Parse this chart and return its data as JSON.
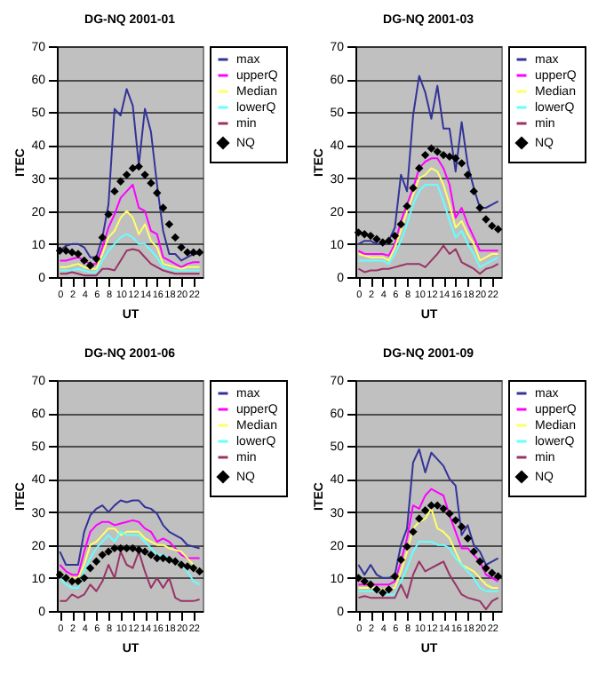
{
  "chart_data": [
    {
      "type": "line",
      "title": "DG-NQ 2001-01",
      "xlabel": "UT",
      "ylabel": "ITEC",
      "x": [
        0,
        1,
        2,
        3,
        4,
        5,
        6,
        7,
        8,
        9,
        10,
        11,
        12,
        13,
        14,
        15,
        16,
        17,
        18,
        19,
        20,
        21,
        22,
        23
      ],
      "xlim": [
        -0.5,
        23.5
      ],
      "xticks": [
        0,
        2,
        4,
        6,
        8,
        10,
        12,
        14,
        16,
        18,
        20,
        22
      ],
      "ylim": [
        0,
        70
      ],
      "yticks": [
        0,
        10,
        20,
        30,
        40,
        50,
        60,
        70
      ],
      "grid": "y",
      "legend": "right",
      "series": [
        {
          "name": "max",
          "color": "#333399",
          "values": [
            8,
            9.5,
            10,
            10,
            9,
            6,
            6,
            12,
            22,
            51,
            49,
            57,
            52,
            34,
            51,
            44,
            28,
            14,
            7,
            7,
            5,
            6,
            7,
            7
          ]
        },
        {
          "name": "upperQ",
          "color": "#ff00ff",
          "values": [
            5,
            5,
            5.5,
            6,
            5,
            4,
            4,
            9,
            15,
            19,
            24,
            26,
            28,
            21,
            20,
            14,
            13,
            6,
            5,
            4,
            3,
            4,
            4.5,
            4.5
          ]
        },
        {
          "name": "Median",
          "color": "#ffff66",
          "values": [
            3,
            3,
            3.5,
            4,
            3,
            2.5,
            2.5,
            7,
            12,
            14,
            18,
            20,
            18,
            13,
            16,
            11,
            9,
            4,
            3.5,
            3,
            2.5,
            3,
            3,
            3
          ]
        },
        {
          "name": "lowerQ",
          "color": "#66ffff",
          "values": [
            2,
            2,
            2,
            2.5,
            2,
            1.5,
            1.5,
            5,
            8,
            10,
            12,
            13,
            12,
            10,
            10,
            8,
            6,
            3,
            2.5,
            2,
            2,
            2,
            2,
            2
          ]
        },
        {
          "name": "min",
          "color": "#993366",
          "values": [
            1,
            1,
            1.5,
            1,
            0.5,
            0.5,
            0.5,
            2.5,
            2.5,
            2,
            5,
            8,
            8.5,
            8,
            6,
            4,
            3,
            2,
            1.5,
            1,
            1,
            1,
            1,
            1
          ]
        },
        {
          "name": "NQ",
          "type": "scatter",
          "marker": "diamond",
          "color": "#000000",
          "values": [
            8,
            8,
            7.5,
            7,
            5,
            3.5,
            5.5,
            12,
            19,
            26,
            29,
            31,
            33,
            33.5,
            31,
            28.5,
            25.5,
            21,
            16,
            12,
            9,
            7.5,
            7.5,
            7.5
          ]
        }
      ]
    },
    {
      "type": "line",
      "title": "DG-NQ 2001-03",
      "xlabel": "UT",
      "ylabel": "ITEC",
      "x": [
        0,
        1,
        2,
        3,
        4,
        5,
        6,
        7,
        8,
        9,
        10,
        11,
        12,
        13,
        14,
        15,
        16,
        17,
        18,
        19,
        20,
        21,
        22,
        23
      ],
      "xlim": [
        -0.5,
        23.5
      ],
      "xticks": [
        0,
        2,
        4,
        6,
        8,
        10,
        12,
        14,
        16,
        18,
        20,
        22
      ],
      "ylim": [
        0,
        70
      ],
      "yticks": [
        0,
        10,
        20,
        30,
        40,
        50,
        60,
        70
      ],
      "grid": "y",
      "legend": "right",
      "series": [
        {
          "name": "max",
          "color": "#333399",
          "values": [
            10,
            11,
            11,
            10,
            10,
            11,
            15,
            31,
            26,
            49,
            61,
            56,
            48,
            58,
            45,
            45,
            32,
            47,
            34,
            27,
            21,
            21,
            22,
            23
          ]
        },
        {
          "name": "upperQ",
          "color": "#ff00ff",
          "values": [
            8,
            7,
            7,
            7,
            7,
            6.5,
            10,
            17,
            22,
            27,
            33,
            35,
            36,
            36,
            33,
            28,
            18,
            21,
            16,
            12,
            8,
            8,
            8,
            8
          ]
        },
        {
          "name": "Median",
          "color": "#ffff66",
          "values": [
            7,
            6.5,
            6,
            6,
            6,
            5,
            9,
            14,
            20,
            25,
            30,
            31,
            33,
            32,
            28,
            22,
            15,
            17,
            13,
            10,
            5,
            6,
            7,
            7
          ]
        },
        {
          "name": "lowerQ",
          "color": "#66ffff",
          "values": [
            5,
            5,
            5,
            5,
            5,
            4,
            7,
            11,
            16,
            22,
            26,
            28,
            28,
            28,
            23,
            17,
            12,
            14,
            10,
            7,
            3,
            4,
            5,
            6
          ]
        },
        {
          "name": "min",
          "color": "#993366",
          "values": [
            2.5,
            1.5,
            2,
            2,
            2.5,
            2.5,
            3,
            3.5,
            4,
            4,
            4,
            3,
            5,
            7,
            9.5,
            7,
            8.5,
            4.5,
            3.5,
            2.5,
            1,
            2.5,
            3,
            4
          ]
        },
        {
          "name": "NQ",
          "type": "scatter",
          "marker": "diamond",
          "color": "#000000",
          "values": [
            13.5,
            13,
            12.5,
            11.5,
            10.5,
            11,
            12.5,
            16,
            21.5,
            27,
            33,
            37,
            39,
            38,
            37,
            36.5,
            36,
            34.5,
            31,
            26,
            21,
            17.5,
            15.5,
            14.5
          ]
        }
      ]
    },
    {
      "type": "line",
      "title": "DG-NQ 2001-06",
      "xlabel": "UT",
      "ylabel": "ITEC",
      "x": [
        0,
        1,
        2,
        3,
        4,
        5,
        6,
        7,
        8,
        9,
        10,
        11,
        12,
        13,
        14,
        15,
        16,
        17,
        18,
        19,
        20,
        21,
        22,
        23
      ],
      "xlim": [
        -0.5,
        23.5
      ],
      "xticks": [
        0,
        2,
        4,
        6,
        8,
        10,
        12,
        14,
        16,
        18,
        20,
        22
      ],
      "ylim": [
        0,
        70
      ],
      "yticks": [
        0,
        10,
        20,
        30,
        40,
        50,
        60,
        70
      ],
      "grid": "y",
      "legend": "right",
      "series": [
        {
          "name": "max",
          "color": "#333399",
          "values": [
            18,
            14,
            14,
            14,
            24,
            29,
            31,
            32,
            30,
            32,
            33.5,
            33,
            33.5,
            33.5,
            31.5,
            31,
            29.5,
            26,
            24,
            23,
            22,
            20,
            19.5,
            19
          ]
        },
        {
          "name": "upperQ",
          "color": "#ff00ff",
          "values": [
            14,
            12,
            11,
            11,
            18,
            24,
            26,
            27,
            27,
            26,
            26.5,
            27,
            27.5,
            27,
            25,
            24,
            21,
            22,
            21,
            19,
            17,
            16,
            16,
            16
          ]
        },
        {
          "name": "Median",
          "color": "#ffff66",
          "values": [
            12,
            10,
            10,
            10,
            14,
            20,
            21,
            23,
            25,
            25,
            23,
            24,
            24,
            24,
            22,
            21,
            20,
            20,
            19,
            18.5,
            18,
            16,
            14,
            12
          ]
        },
        {
          "name": "lowerQ",
          "color": "#66ffff",
          "values": [
            10,
            8,
            7,
            7,
            12,
            16,
            19,
            21,
            23,
            21,
            24,
            23,
            23,
            23,
            21,
            19,
            17,
            17,
            16,
            15,
            14,
            12,
            9,
            8
          ]
        },
        {
          "name": "min",
          "color": "#993366",
          "values": [
            3,
            3,
            5,
            4,
            5,
            8,
            6,
            9,
            14,
            10,
            18,
            14,
            13,
            18,
            12,
            7,
            10,
            7,
            10,
            4,
            3,
            3,
            3,
            3.5
          ]
        },
        {
          "name": "NQ",
          "type": "scatter",
          "marker": "diamond",
          "color": "#000000",
          "values": [
            11,
            10,
            9,
            9,
            10,
            13,
            15,
            17,
            18,
            19,
            19,
            19,
            19,
            18.5,
            18,
            17,
            16,
            16,
            15.5,
            15,
            14,
            13.5,
            13,
            12
          ]
        }
      ]
    },
    {
      "type": "line",
      "title": "DG-NQ 2001-09",
      "xlabel": "UT",
      "ylabel": "ITEC",
      "x": [
        0,
        1,
        2,
        3,
        4,
        5,
        6,
        7,
        8,
        9,
        10,
        11,
        12,
        13,
        14,
        15,
        16,
        17,
        18,
        19,
        20,
        21,
        22,
        23
      ],
      "xlim": [
        -0.5,
        23.5
      ],
      "xticks": [
        0,
        2,
        4,
        6,
        8,
        10,
        12,
        14,
        16,
        18,
        20,
        22
      ],
      "ylim": [
        0,
        70
      ],
      "yticks": [
        0,
        10,
        20,
        30,
        40,
        50,
        60,
        70
      ],
      "grid": "y",
      "legend": "right",
      "series": [
        {
          "name": "max",
          "color": "#333399",
          "values": [
            14,
            11,
            14,
            11,
            10,
            10,
            11,
            20,
            25,
            45,
            49,
            42,
            48,
            46,
            44,
            40,
            38,
            23,
            26,
            20,
            18,
            14,
            15,
            16
          ]
        },
        {
          "name": "upperQ",
          "color": "#ff00ff",
          "values": [
            8,
            8,
            8,
            8,
            8,
            8,
            9,
            15,
            22,
            32,
            31,
            35,
            37,
            36,
            35,
            29,
            24,
            19,
            19,
            17,
            15,
            11,
            10,
            9
          ]
        },
        {
          "name": "Median",
          "color": "#ffff66",
          "values": [
            7,
            7,
            7,
            7,
            6.5,
            6.5,
            7,
            12,
            18,
            25,
            27,
            28,
            31,
            25,
            24,
            22,
            18,
            14,
            13,
            12,
            10,
            8,
            7,
            7
          ]
        },
        {
          "name": "lowerQ",
          "color": "#66ffff",
          "values": [
            6,
            6,
            6,
            6,
            5,
            5,
            5,
            9,
            13,
            18,
            21,
            21,
            21,
            20,
            20,
            19,
            16,
            14,
            12,
            10,
            7,
            6,
            6,
            6
          ]
        },
        {
          "name": "min",
          "color": "#993366",
          "values": [
            4,
            4.5,
            4,
            4,
            4,
            4,
            4,
            8,
            4,
            11,
            15,
            12,
            13,
            14,
            15,
            11,
            8,
            5,
            4,
            3.5,
            3,
            0.5,
            3,
            4
          ]
        },
        {
          "name": "NQ",
          "type": "scatter",
          "marker": "diamond",
          "color": "#000000",
          "values": [
            10,
            9,
            8,
            6.5,
            5.5,
            6.5,
            10.5,
            15.5,
            19.5,
            24,
            28,
            30.5,
            32,
            32,
            31,
            29.5,
            27.5,
            25.5,
            22,
            18,
            15,
            13,
            11.5,
            10.5
          ]
        }
      ]
    }
  ]
}
